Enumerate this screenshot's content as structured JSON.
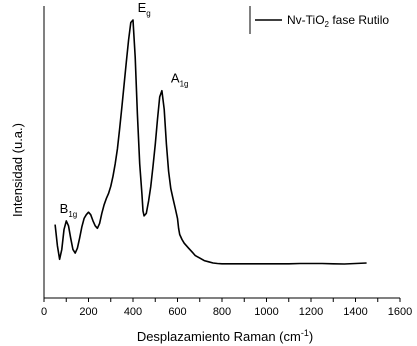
{
  "chart_data": {
    "type": "line",
    "xlabel": "Desplazamiento Raman (cm",
    "xlabel_sup": "-1",
    "xlabel_end": ")",
    "ylabel": "Intensidad (u.a.)",
    "xlim": [
      0,
      1600
    ],
    "ylim": [
      0,
      1.0
    ],
    "x_ticks": [
      "0",
      "100",
      "200",
      "300",
      "400",
      "500",
      "600",
      "700",
      "800",
      "900",
      "1000",
      "1100",
      "1200",
      "1300",
      "1400",
      "1500",
      "1600"
    ],
    "y_ticks_labeled": false,
    "legend": {
      "position": "top-right",
      "entry_main": "Nv-TiO",
      "entry_sub": "2",
      "entry_rest": " fase Rutilo"
    },
    "line_color": "#000000",
    "series": [
      {
        "name": "Nv-TiO2 fase Rutilo",
        "x": [
          50,
          60,
          70,
          80,
          90,
          100,
          110,
          120,
          130,
          140,
          150,
          160,
          170,
          180,
          190,
          200,
          210,
          220,
          230,
          240,
          250,
          260,
          270,
          280,
          290,
          300,
          310,
          320,
          330,
          340,
          350,
          360,
          370,
          380,
          390,
          400,
          410,
          420,
          430,
          440,
          445,
          450,
          460,
          470,
          480,
          490,
          500,
          510,
          520,
          530,
          540,
          550,
          560,
          570,
          580,
          590,
          600,
          605,
          610,
          620,
          630,
          640,
          650,
          660,
          670,
          680,
          690,
          700,
          710,
          720,
          740,
          760,
          780,
          800,
          850,
          900,
          950,
          1000,
          1050,
          1100,
          1150,
          1200,
          1250,
          1300,
          1350,
          1400,
          1450
        ],
        "y": [
          0.175,
          0.09,
          0.035,
          0.075,
          0.155,
          0.19,
          0.17,
          0.12,
          0.075,
          0.06,
          0.08,
          0.12,
          0.165,
          0.2,
          0.215,
          0.225,
          0.215,
          0.19,
          0.17,
          0.16,
          0.18,
          0.22,
          0.255,
          0.28,
          0.3,
          0.33,
          0.37,
          0.42,
          0.48,
          0.56,
          0.65,
          0.74,
          0.83,
          0.92,
          0.99,
          1.0,
          0.85,
          0.62,
          0.42,
          0.3,
          0.23,
          0.21,
          0.22,
          0.27,
          0.33,
          0.41,
          0.5,
          0.6,
          0.69,
          0.715,
          0.64,
          0.5,
          0.39,
          0.32,
          0.28,
          0.24,
          0.2,
          0.16,
          0.135,
          0.115,
          0.1,
          0.09,
          0.08,
          0.07,
          0.06,
          0.05,
          0.045,
          0.04,
          0.035,
          0.03,
          0.025,
          0.02,
          0.018,
          0.017,
          0.017,
          0.017,
          0.017,
          0.017,
          0.017,
          0.017,
          0.018,
          0.018,
          0.018,
          0.017,
          0.016,
          0.018,
          0.02
        ]
      }
    ],
    "annotations": [
      {
        "main": "E",
        "sub": "g",
        "x": 450,
        "y": 1.0
      },
      {
        "main": "A",
        "sub": "1g",
        "x": 610,
        "y": 0.715
      },
      {
        "main": "B",
        "sub": "1g",
        "x": 110,
        "y": 0.19
      }
    ]
  }
}
